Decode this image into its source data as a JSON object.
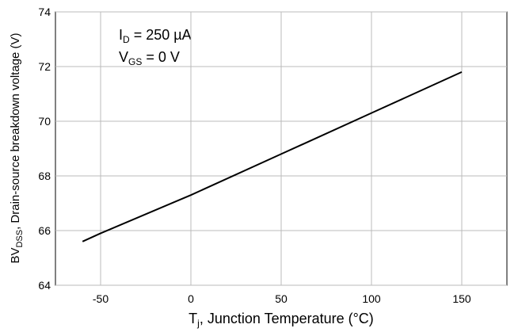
{
  "chart_data": {
    "type": "line",
    "x_label": {
      "main": "T",
      "sub": "j",
      "rest": ", Junction Temperature (°C)"
    },
    "y_label": {
      "main": "BV",
      "sub": "DSS",
      "rest": ", Drain-source breakdown voltage (V)"
    },
    "annotations": [
      {
        "main": "I",
        "sub": "D",
        "rest": " = 250 µA"
      },
      {
        "main": "V",
        "sub": "GS",
        "rest": " = 0 V"
      }
    ],
    "x": [
      -60,
      -50,
      0,
      50,
      100,
      150
    ],
    "series": [
      {
        "color": "#000000",
        "values": [
          65.6,
          65.9,
          67.3,
          68.8,
          70.3,
          71.8
        ]
      }
    ],
    "xlim": [
      -75,
      175
    ],
    "xticks": [
      -50,
      0,
      50,
      100,
      150
    ],
    "ylim": [
      64,
      74
    ],
    "yticks": [
      64,
      66,
      68,
      70,
      72,
      74
    ],
    "grid": true
  }
}
